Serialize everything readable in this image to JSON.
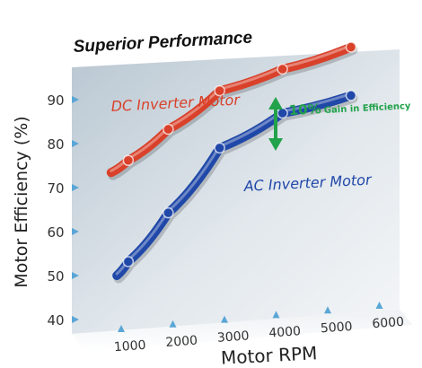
{
  "chart_data": {
    "type": "line",
    "title": "Superior Performance",
    "xlabel": "Motor RPM",
    "ylabel": "Motor Efficiency (%)",
    "xticks": [
      "1000",
      "2000",
      "3000",
      "4000",
      "5000",
      "6000"
    ],
    "yticks": [
      "40",
      "50",
      "60",
      "70",
      "80",
      "90"
    ],
    "xlim": [
      1000,
      6000
    ],
    "ylim": [
      40,
      95
    ],
    "series": [
      {
        "name": "DC Inverter Motor",
        "color": "#d9412a",
        "x": [
          1500,
          1800,
          2500,
          3400,
          4500,
          5700
        ],
        "y": [
          73,
          75.5,
          82,
          90,
          94,
          98
        ]
      },
      {
        "name": "AC Inverter Motor",
        "color": "#2048a8",
        "x": [
          1600,
          1800,
          2500,
          3400,
          4500,
          5700
        ],
        "y": [
          49.5,
          52.5,
          63,
          77,
          84,
          87
        ]
      }
    ],
    "annotation": {
      "value": "10%",
      "text": "Gain in Efficiency",
      "color": "#22a24a"
    }
  }
}
